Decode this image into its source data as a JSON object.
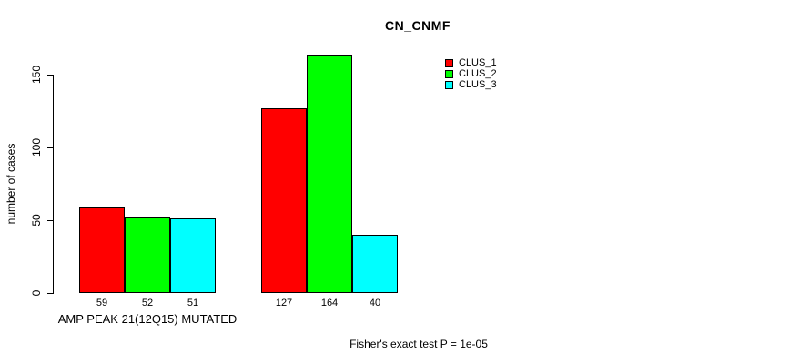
{
  "title": "CN_CNMF",
  "footer": "Fisher's exact test P = 1e-05",
  "chart_data": {
    "type": "bar",
    "title": "CN_CNMF",
    "xlabel": "AMP PEAK 21(12Q15) MUTATED",
    "ylabel": "number of cases",
    "annotation": "Fisher's exact test P = 1e-05",
    "categories": [
      "AMP PEAK 21(12Q15) MUTATED",
      ""
    ],
    "series": [
      {
        "name": "CLUS_1",
        "color": "#ff0000",
        "values": [
          59,
          127
        ]
      },
      {
        "name": "CLUS_2",
        "color": "#00ff00",
        "values": [
          52,
          164
        ]
      },
      {
        "name": "CLUS_3",
        "color": "#00ffff",
        "values": [
          51,
          40
        ]
      }
    ],
    "yticks": [
      0,
      50,
      100,
      150
    ],
    "ylim": [
      0,
      164
    ],
    "grid": false,
    "show_bar_value_labels": true,
    "legend_position": "top-right",
    "bar_border_color": "#000000",
    "background_color": "#ffffff"
  }
}
